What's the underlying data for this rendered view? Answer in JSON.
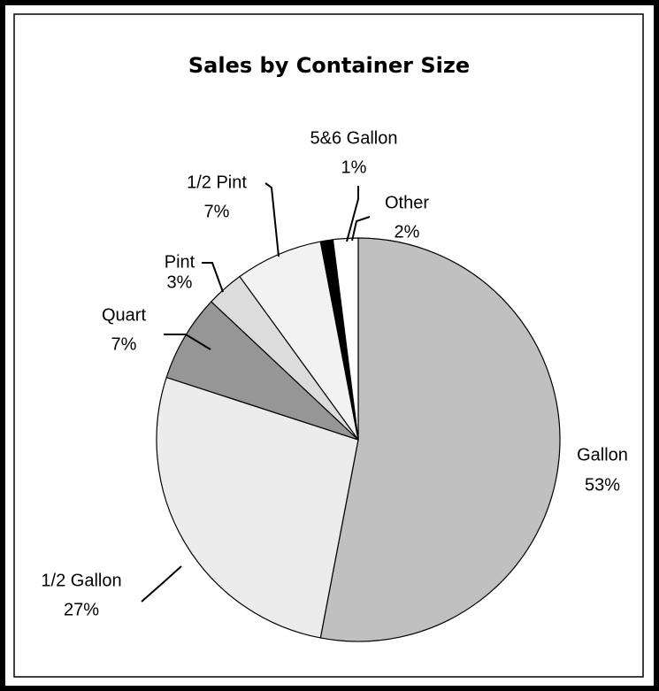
{
  "chart_data": {
    "type": "pie",
    "title": "Sales by Container Size",
    "categories": [
      "Gallon",
      "1/2 Gallon",
      "Quart",
      "Pint",
      "1/2 Pint",
      "5&6 Gallon",
      "Other"
    ],
    "values": [
      53,
      27,
      7,
      3,
      7,
      1,
      2
    ],
    "value_labels": [
      "53%",
      "27%",
      "7%",
      "3%",
      "7%",
      "1%",
      "2%"
    ],
    "colors": [
      "#c0c0c0",
      "#ececec",
      "#969696",
      "#dcdcdc",
      "#f2f2f2",
      "#000000",
      "#ffffff"
    ]
  }
}
